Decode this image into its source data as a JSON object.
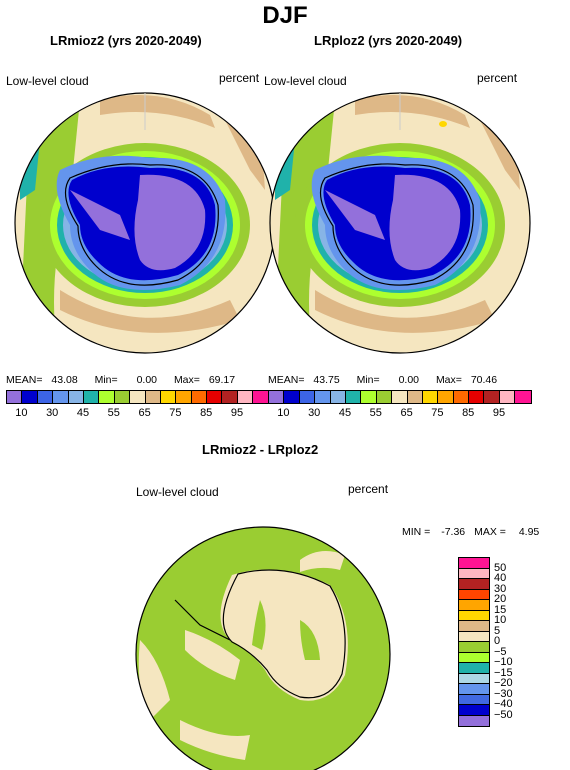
{
  "title": "DJF",
  "panels": [
    {
      "title": "LRmioz2 (yrs 2020-2049)",
      "variable": "Low-level cloud",
      "units": "percent",
      "stats": {
        "mean_label": "MEAN=",
        "mean": "43.08",
        "min_label": "Min=",
        "min": "0.00",
        "max_label": "Max=",
        "max": "69.17"
      }
    },
    {
      "title": "LRploz2 (yrs 2020-2049)",
      "variable": "Low-level cloud",
      "units": "percent",
      "stats": {
        "mean_label": "MEAN=",
        "mean": "43.75",
        "min_label": "Min=",
        "min": "0.00",
        "max_label": "Max=",
        "max": "70.46"
      }
    },
    {
      "title": "LRmioz2 - LRploz2",
      "variable": "Low-level cloud",
      "units": "percent",
      "stats": {
        "min_label": "MIN =",
        "min": "-7.36",
        "max_label": "MAX =",
        "max": "4.95"
      }
    }
  ],
  "colorbar_top": {
    "colors": [
      "#9370db",
      "#0000cd",
      "#3c64e6",
      "#6495ed",
      "#87b4e6",
      "#20b2aa",
      "#adff2f",
      "#9acd32",
      "#f5e6c0",
      "#deb887",
      "#ffd700",
      "#ffa500",
      "#ff6a00",
      "#e60000",
      "#b22222",
      "#ffb6c1",
      "#ff1493"
    ],
    "ticks": [
      "10",
      "30",
      "45",
      "55",
      "65",
      "75",
      "85",
      "95"
    ],
    "ticks_row": [
      "10",
      "30",
      "45",
      "55",
      "65",
      "75",
      "85",
      "95"
    ]
  },
  "colorbar_diff": {
    "colors": [
      "#ff1493",
      "#ffb6c1",
      "#b22222",
      "#ff4500",
      "#ffa500",
      "#ffd700",
      "#deb887",
      "#f5e6c0",
      "#9acd32",
      "#adff2f",
      "#20b2aa",
      "#add8e6",
      "#6495ed",
      "#4169e1",
      "#0000cd",
      "#9370db"
    ],
    "ticks": [
      "50",
      "40",
      "30",
      "20",
      "15",
      "10",
      "5",
      "0",
      "−5",
      "−10",
      "−15",
      "−20",
      "−30",
      "−40",
      "−50"
    ]
  }
}
